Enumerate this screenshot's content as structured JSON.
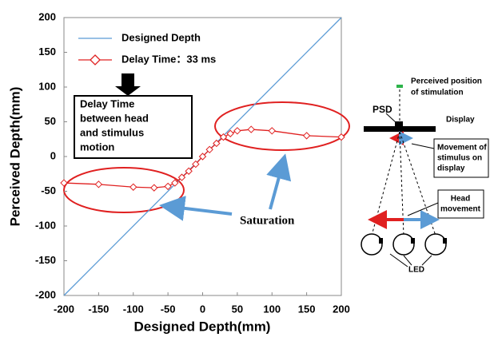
{
  "chart_data": {
    "type": "line",
    "xlabel": "Designed Depth(mm)",
    "ylabel": "Perceived Depth(mm)",
    "xlim": [
      -200,
      200
    ],
    "ylim": [
      -200,
      200
    ],
    "xticks": [
      -200,
      -150,
      -100,
      -50,
      0,
      50,
      100,
      150,
      200
    ],
    "yticks": [
      -200,
      -150,
      -100,
      -50,
      0,
      50,
      100,
      150,
      200
    ],
    "series": [
      {
        "name": "Designed Depth",
        "color": "#5b9bd5",
        "marker": "none",
        "x": [
          -200,
          200
        ],
        "values": [
          -200,
          200
        ]
      },
      {
        "name": "Delay Time：33 ms",
        "color": "#e02020",
        "marker": "diamond",
        "x": [
          -200,
          -150,
          -100,
          -70,
          -50,
          -40,
          -30,
          -20,
          -10,
          0,
          10,
          20,
          30,
          40,
          50,
          70,
          100,
          150,
          200
        ],
        "values": [
          -38,
          -40,
          -44,
          -45,
          -43,
          -38,
          -30,
          -21,
          -11,
          0,
          10,
          19,
          28,
          33,
          37,
          39,
          37,
          30,
          28
        ]
      }
    ],
    "annotations": {
      "box_lines": [
        "Delay Time",
        "between head",
        "and stimulus",
        "motion"
      ],
      "saturation": "Saturation"
    },
    "diagram": {
      "perceived_position": [
        "Perceived position",
        "of stimulation"
      ],
      "psd": "PSD",
      "display": "Display",
      "movement": [
        "Movement of",
        "stimulus on",
        "display"
      ],
      "head_movement": [
        "Head",
        "movement"
      ],
      "led": "LED"
    }
  }
}
